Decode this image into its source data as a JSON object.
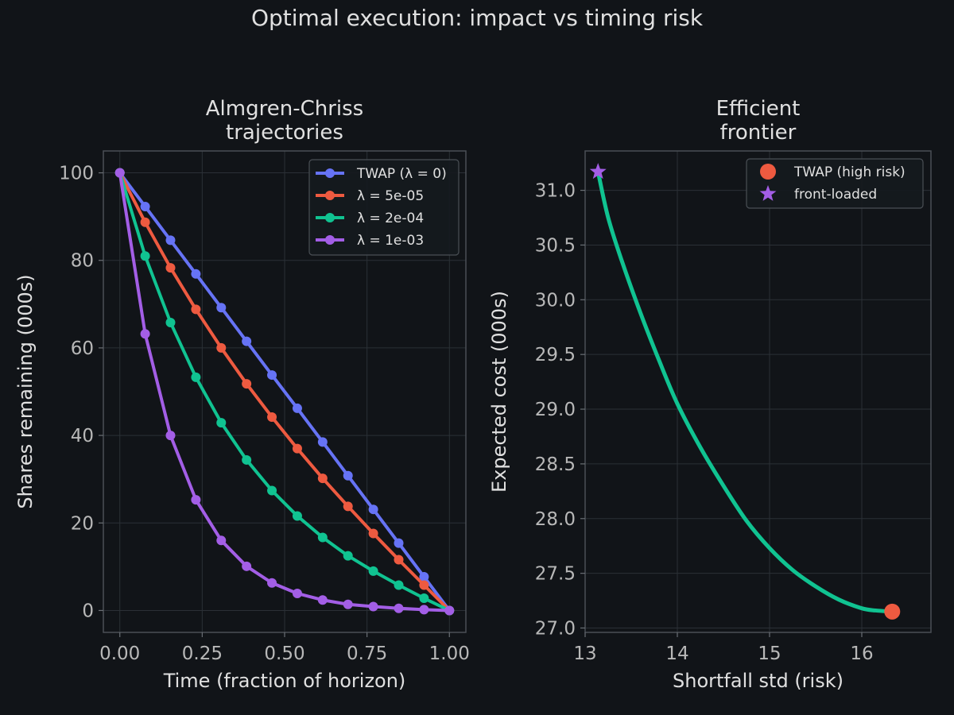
{
  "suptitle": "Optimal execution: impact vs timing risk",
  "colors": {
    "background": "#111418",
    "twap": "#6673f5",
    "lam1": "#ee5a40",
    "lam2": "#10c391",
    "lam3": "#a35ee6",
    "frontier": "#10c391"
  },
  "chart_data": [
    {
      "type": "line",
      "title": "Almgren-Chriss\ntrajectories",
      "xlabel": "Time (fraction of horizon)",
      "ylabel": "Shares remaining (000s)",
      "xlim": [
        -0.05,
        1.05
      ],
      "ylim": [
        -5,
        105
      ],
      "xticks": [
        0,
        0.25,
        0.5,
        0.75,
        1.0
      ],
      "xtick_labels": [
        "0.00",
        "0.25",
        "0.50",
        "0.75",
        "1.00"
      ],
      "yticks": [
        0,
        20,
        40,
        60,
        80,
        100
      ],
      "ytick_labels": [
        "0",
        "20",
        "40",
        "60",
        "80",
        "100"
      ],
      "grid": true,
      "legend_position": "top-right",
      "x": [
        0,
        0.0769,
        0.1538,
        0.2308,
        0.3077,
        0.3846,
        0.4615,
        0.5385,
        0.6154,
        0.6923,
        0.7692,
        0.8462,
        0.9231,
        1.0
      ],
      "series": [
        {
          "name": "TWAP (λ = 0)",
          "color": "#6673f5",
          "values": [
            100,
            92.3,
            84.6,
            76.9,
            69.2,
            61.5,
            53.8,
            46.2,
            38.5,
            30.8,
            23.1,
            15.4,
            7.7,
            0
          ]
        },
        {
          "name": "λ = 5e-05",
          "color": "#ee5a40",
          "values": [
            100,
            88.7,
            78.3,
            68.8,
            60.0,
            51.8,
            44.2,
            37.0,
            30.2,
            23.8,
            17.6,
            11.6,
            5.8,
            0
          ]
        },
        {
          "name": "λ = 2e-04",
          "color": "#10c391",
          "values": [
            100,
            81.0,
            65.8,
            53.3,
            42.9,
            34.4,
            27.4,
            21.6,
            16.7,
            12.5,
            9.0,
            5.8,
            2.8,
            0
          ]
        },
        {
          "name": "λ = 1e-03",
          "color": "#a35ee6",
          "values": [
            100,
            63.2,
            40.0,
            25.3,
            16.0,
            10.1,
            6.3,
            3.9,
            2.4,
            1.4,
            0.9,
            0.5,
            0.2,
            0
          ]
        }
      ]
    },
    {
      "type": "line",
      "title": "Efficient\nfrontier",
      "xlabel": "Shortfall std (risk)",
      "ylabel": "Expected cost (000s)",
      "xlim": [
        13.0,
        16.75
      ],
      "ylim": [
        26.96,
        31.36
      ],
      "xticks": [
        13,
        14,
        15,
        16
      ],
      "xtick_labels": [
        "13",
        "14",
        "15",
        "16"
      ],
      "yticks": [
        27.0,
        27.5,
        28.0,
        28.5,
        29.0,
        29.5,
        30.0,
        30.5,
        31.0
      ],
      "ytick_labels": [
        "27.0",
        "27.5",
        "28.0",
        "28.5",
        "29.0",
        "29.5",
        "30.0",
        "30.5",
        "31.0"
      ],
      "grid": true,
      "legend_position": "top-right",
      "frontier": {
        "color": "#10c391",
        "x": [
          13.14,
          13.25,
          13.4,
          13.6,
          13.8,
          14.0,
          14.25,
          14.5,
          14.75,
          15.0,
          15.25,
          15.5,
          15.75,
          16.0,
          16.15,
          16.33
        ],
        "y": [
          31.17,
          30.75,
          30.35,
          29.88,
          29.45,
          29.05,
          28.65,
          28.3,
          27.98,
          27.73,
          27.53,
          27.38,
          27.26,
          27.18,
          27.16,
          27.15
        ]
      },
      "markers": [
        {
          "name": "TWAP (high risk)",
          "shape": "circle",
          "color": "#ee5a40",
          "x": 16.33,
          "y": 27.15
        },
        {
          "name": "front-loaded",
          "shape": "star",
          "color": "#a35ee6",
          "x": 13.14,
          "y": 31.17
        }
      ]
    }
  ]
}
